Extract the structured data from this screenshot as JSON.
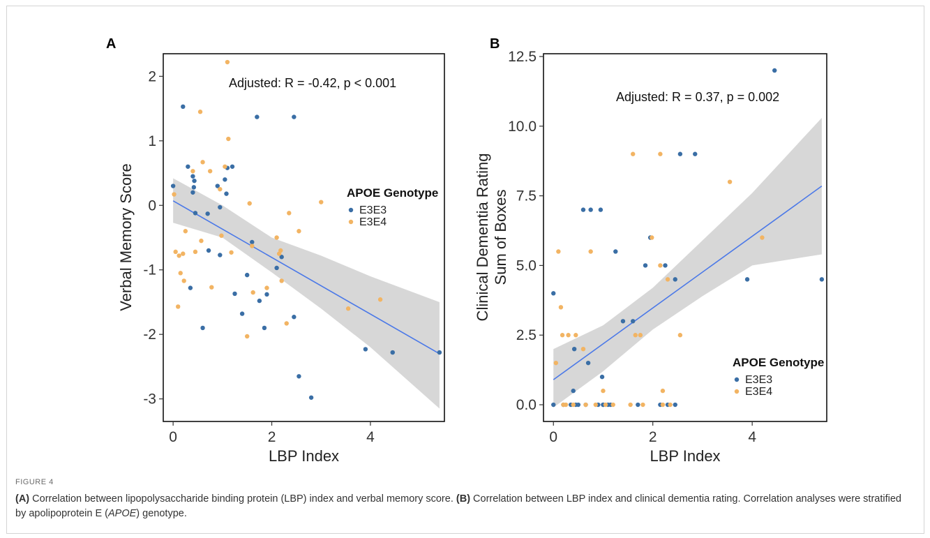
{
  "figure_label": "FIGURE 4",
  "caption": {
    "a_tag": "(A)",
    "a_text": " Correlation between lipopolysaccharide binding protein (LBP) index and verbal memory score. ",
    "b_tag": "(B)",
    "b_text1": " Correlation between LBP index and clinical dementia rating. Correlation analyses were stratified by apolipoprotein E (",
    "b_italic": "APOE",
    "b_text2": ") genotype."
  },
  "colors": {
    "E3E3": "#3a6ea5",
    "E3E4": "#f2b463",
    "fit_line": "#4a78e8",
    "ci_band": "#d3d3d3"
  },
  "chart_data": [
    {
      "panel": "A",
      "type": "scatter",
      "xlabel": "LBP Index",
      "ylabel": "Verbal Memory Score",
      "xlim": [
        -0.2,
        5.5
      ],
      "ylim": [
        -3.35,
        2.35
      ],
      "xticks": [
        0,
        2,
        4
      ],
      "yticks": [
        2,
        1,
        0,
        -1,
        -2,
        -3
      ],
      "ytick_labels": [
        "2",
        "1",
        "0",
        "-1",
        "-2",
        "-3"
      ],
      "annotation": "Adjusted: R = -0.42, p < 0.001",
      "legend": {
        "title": "APOE Genotype",
        "entries": [
          "E3E3",
          "E3E4"
        ]
      },
      "fit": {
        "x": [
          0,
          5.4
        ],
        "y": [
          0.07,
          -2.3
        ]
      },
      "ci_band": {
        "x": [
          0,
          1,
          2,
          3,
          4,
          5.4
        ],
        "upper": [
          0.42,
          0.0,
          -0.5,
          -0.78,
          -1.1,
          -1.5
        ],
        "lower": [
          -0.27,
          -0.5,
          -1.04,
          -1.6,
          -2.2,
          -3.15
        ]
      },
      "series": [
        {
          "name": "E3E3",
          "x": [
            0,
            0.2,
            0.3,
            0.35,
            0.4,
            0.42,
            0.43,
            0.45,
            0.4,
            0.6,
            0.7,
            0.72,
            0.9,
            0.95,
            0.95,
            1.05,
            1.08,
            1.1,
            1.2,
            1.25,
            1.4,
            1.5,
            1.6,
            1.7,
            1.75,
            1.85,
            1.9,
            2.1,
            2.2,
            2.45,
            2.45,
            2.55,
            2.8,
            3.9,
            4.45,
            5.4
          ],
          "y": [
            0.3,
            1.53,
            0.6,
            -1.28,
            0.45,
            0.28,
            0.38,
            -0.12,
            0.2,
            -1.9,
            -0.13,
            -0.7,
            0.3,
            -0.03,
            -0.77,
            0.4,
            0.18,
            0.58,
            0.6,
            -1.37,
            -1.68,
            -1.08,
            -0.57,
            1.37,
            -1.48,
            -1.9,
            -1.38,
            -0.97,
            -0.8,
            1.37,
            -1.73,
            -2.65,
            -2.98,
            -2.23,
            -2.28,
            -2.28
          ]
        },
        {
          "name": "E3E4",
          "x": [
            0.02,
            0.05,
            0.1,
            0.12,
            0.15,
            0.2,
            0.22,
            0.25,
            0.4,
            0.45,
            0.55,
            0.57,
            0.6,
            0.75,
            0.78,
            0.95,
            0.98,
            1.05,
            1.1,
            1.12,
            1.18,
            1.5,
            1.55,
            1.6,
            1.62,
            1.9,
            2.1,
            2.15,
            2.18,
            2.2,
            2.3,
            2.35,
            2.55,
            3.0,
            3.55,
            4.2
          ],
          "y": [
            0.17,
            -0.72,
            -1.57,
            -0.78,
            -1.05,
            -0.75,
            -1.17,
            -0.4,
            0.53,
            -0.72,
            1.45,
            -0.55,
            0.67,
            0.53,
            -1.27,
            0.25,
            -0.47,
            0.6,
            2.22,
            1.03,
            -0.73,
            -2.03,
            0.03,
            -0.63,
            -1.35,
            -1.28,
            -0.5,
            -0.75,
            -0.7,
            -1.17,
            -1.83,
            -0.12,
            -0.4,
            0.05,
            -1.6,
            -1.46
          ]
        }
      ]
    },
    {
      "panel": "B",
      "type": "scatter",
      "xlabel": "LBP Index",
      "ylabel_line1": "Clinical Dementia Rating",
      "ylabel_line2": "Sum of Boxes",
      "xlim": [
        -0.2,
        5.5
      ],
      "ylim": [
        -0.6,
        12.6
      ],
      "xticks": [
        0,
        2,
        4
      ],
      "yticks": [
        0,
        2.5,
        5,
        7.5,
        10,
        12.5
      ],
      "ytick_labels": [
        "0.0",
        "2.5",
        "5.0",
        "7.5",
        "10.0",
        "12.5"
      ],
      "annotation": "Adjusted: R = 0.37, p = 0.002",
      "legend": {
        "title": "APOE Genotype",
        "entries": [
          "E3E3",
          "E3E4"
        ]
      },
      "fit": {
        "x": [
          0,
          5.4
        ],
        "y": [
          0.9,
          7.85
        ]
      },
      "ci_band": {
        "x": [
          0,
          1,
          2,
          3,
          4,
          5.4
        ],
        "upper": [
          2.0,
          2.85,
          4.2,
          5.9,
          7.6,
          10.3
        ],
        "lower": [
          -0.1,
          1.2,
          2.7,
          3.9,
          5.0,
          5.4
        ]
      },
      "series": [
        {
          "name": "E3E3",
          "x": [
            0,
            0,
            0.4,
            0.42,
            0.45,
            0.5,
            0.6,
            0.65,
            0.7,
            0.75,
            0.9,
            0.95,
            0.98,
            1.0,
            1.0,
            1.1,
            1.15,
            1.25,
            1.4,
            1.6,
            1.7,
            1.85,
            1.95,
            2.15,
            2.25,
            2.3,
            2.45,
            2.45,
            2.55,
            2.85,
            3.9,
            4.45,
            5.4,
            0.35,
            0.2
          ],
          "y": [
            4.0,
            0.0,
            0.5,
            2.0,
            0.0,
            0.0,
            7.0,
            0.0,
            1.5,
            7.0,
            0.0,
            7.0,
            1.0,
            0.0,
            0.0,
            0.0,
            0.0,
            5.5,
            3.0,
            3.0,
            0.0,
            5.0,
            6.0,
            0.0,
            5.0,
            0.0,
            4.5,
            0.0,
            9.0,
            9.0,
            4.5,
            12.0,
            4.5,
            0.0,
            0.0
          ]
        },
        {
          "name": "E3E4",
          "x": [
            0.05,
            0.1,
            0.15,
            0.18,
            0.2,
            0.25,
            0.3,
            0.4,
            0.45,
            0.6,
            0.65,
            0.75,
            0.85,
            1.0,
            1.05,
            1.2,
            1.6,
            1.65,
            1.75,
            1.8,
            1.98,
            2.15,
            2.15,
            2.2,
            2.2,
            2.3,
            2.35,
            2.55,
            3.55,
            4.2,
            1.55
          ],
          "y": [
            1.5,
            5.5,
            3.5,
            2.5,
            0.0,
            0.0,
            2.5,
            0.0,
            2.5,
            2.0,
            0.0,
            5.5,
            0.0,
            0.5,
            0.0,
            0.0,
            9.0,
            2.5,
            2.5,
            0.0,
            6.0,
            9.0,
            5.0,
            0.5,
            0.0,
            4.5,
            0.0,
            2.5,
            8.0,
            6.0,
            0.0
          ]
        }
      ]
    }
  ]
}
